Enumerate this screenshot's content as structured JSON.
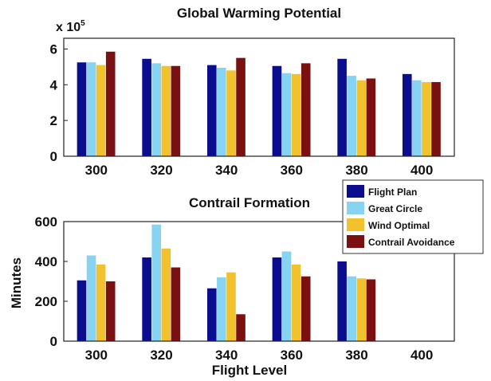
{
  "chart_data": [
    {
      "type": "bar",
      "title": "Global Warming Potential",
      "multiplier_label": "x 10",
      "multiplier_exponent": "5",
      "categories": [
        "300",
        "320",
        "340",
        "360",
        "380",
        "400"
      ],
      "series": [
        {
          "name": "Flight Plan",
          "values": [
            5.25,
            5.45,
            5.1,
            5.05,
            5.45,
            4.6
          ]
        },
        {
          "name": "Great Circle",
          "values": [
            5.25,
            5.2,
            4.95,
            4.65,
            4.5,
            4.25
          ]
        },
        {
          "name": "Wind Optimal",
          "values": [
            5.1,
            5.05,
            4.8,
            4.6,
            4.25,
            4.15
          ]
        },
        {
          "name": "Contrail Avoidance",
          "values": [
            5.85,
            5.05,
            5.5,
            5.2,
            4.35,
            4.15
          ]
        }
      ],
      "ylim": [
        0,
        6.6
      ],
      "yticks": [
        "0",
        "2",
        "4",
        "6"
      ],
      "xlabel": "",
      "ylabel": "",
      "grid": false
    },
    {
      "type": "bar",
      "title": "Contrail Formation",
      "categories": [
        "300",
        "320",
        "340",
        "360",
        "380",
        "400"
      ],
      "series": [
        {
          "name": "Flight Plan",
          "values": [
            305,
            420,
            265,
            420,
            400,
            0
          ]
        },
        {
          "name": "Great Circle",
          "values": [
            430,
            585,
            320,
            450,
            325,
            0
          ]
        },
        {
          "name": "Wind Optimal",
          "values": [
            385,
            465,
            345,
            385,
            315,
            0
          ]
        },
        {
          "name": "Contrail Avoidance",
          "values": [
            300,
            370,
            135,
            325,
            310,
            0
          ]
        }
      ],
      "ylim": [
        0,
        600
      ],
      "yticks": [
        "0",
        "200",
        "400",
        "600"
      ],
      "xlabel": "Flight Level",
      "ylabel": "Minutes",
      "grid": false,
      "legend": "top-right"
    }
  ],
  "colors": {
    "Flight Plan": "#0b0d8f",
    "Great Circle": "#87d3f2",
    "Wind Optimal": "#f2c12e",
    "Contrail Avoidance": "#7a1010"
  }
}
